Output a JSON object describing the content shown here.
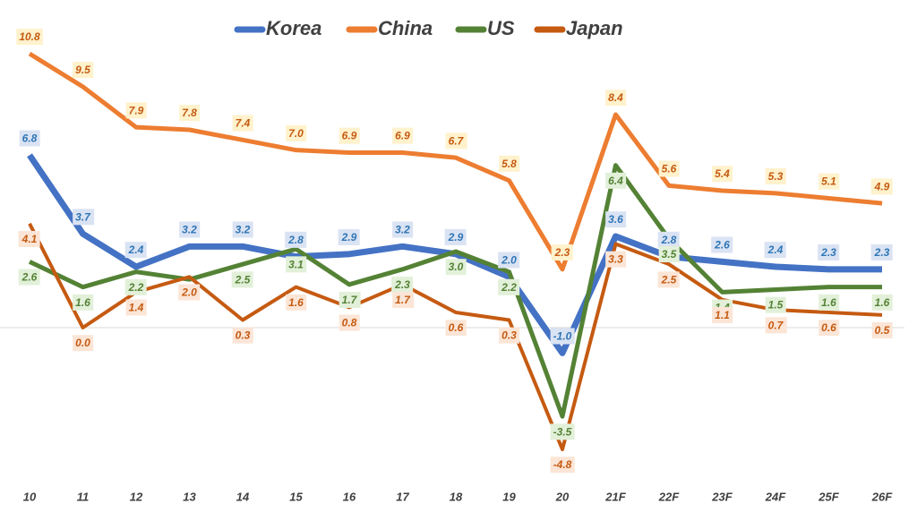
{
  "chart_data": {
    "type": "line",
    "categories": [
      "10",
      "11",
      "12",
      "13",
      "14",
      "15",
      "16",
      "17",
      "18",
      "19",
      "20",
      "21F",
      "22F",
      "23F",
      "24F",
      "25F",
      "26F"
    ],
    "series": [
      {
        "name": "Korea",
        "color": "#4472c4",
        "values": [
          6.8,
          3.7,
          2.4,
          3.2,
          3.2,
          2.8,
          2.9,
          3.2,
          2.9,
          2.0,
          -1.0,
          3.6,
          2.8,
          2.6,
          2.4,
          2.3,
          2.3
        ],
        "value_labels": [
          "6.8",
          "3.7",
          "2.4",
          "3.2",
          "3.2",
          "2.8",
          "2.9",
          "3.2",
          "2.9",
          "2.0",
          "-1.0",
          "3.6",
          "2.8",
          "2.6",
          "2.4",
          "2.3",
          "2.3"
        ]
      },
      {
        "name": "China",
        "color": "#ed7d31",
        "values": [
          10.8,
          9.5,
          7.9,
          7.8,
          7.4,
          7.0,
          6.9,
          6.9,
          6.7,
          5.8,
          2.3,
          8.4,
          5.6,
          5.4,
          5.3,
          5.1,
          4.9
        ],
        "value_labels": [
          "10.8",
          "9.5",
          "7.9",
          "7.8",
          "7.4",
          "7.0",
          "6.9",
          "6.9",
          "6.7",
          "5.8",
          "2.3",
          "8.4",
          "5.6",
          "5.4",
          "5.3",
          "5.1",
          "4.9"
        ]
      },
      {
        "name": "US",
        "color": "#548235",
        "values": [
          2.6,
          1.6,
          2.2,
          1.9,
          2.5,
          3.1,
          1.7,
          2.3,
          3.0,
          2.2,
          -3.5,
          6.4,
          3.5,
          1.4,
          1.5,
          1.6,
          1.6
        ],
        "value_labels": [
          "2.6",
          "1.6",
          "2.2",
          null,
          "2.5",
          "3.1",
          "1.7",
          "2.3",
          "3.0",
          "2.2",
          "-3.5",
          "6.4",
          "3.5",
          "1.4",
          "1.5",
          "1.6",
          "1.6"
        ]
      },
      {
        "name": "Japan",
        "color": "#c55a11",
        "values": [
          4.1,
          0.0,
          1.4,
          2.0,
          0.3,
          1.6,
          0.8,
          1.7,
          0.6,
          0.3,
          -4.8,
          3.3,
          2.5,
          1.1,
          0.7,
          0.6,
          0.5
        ],
        "value_labels": [
          "4.1",
          "0.0",
          "1.4",
          "2.0",
          "0.3",
          "1.6",
          "0.8",
          "1.7",
          "0.6",
          "0.3",
          "-4.8",
          "3.3",
          "2.5",
          "1.1",
          "0.7",
          "0.6",
          "0.5"
        ]
      }
    ],
    "ylim": [
      -6,
      12
    ],
    "grid": false
  }
}
